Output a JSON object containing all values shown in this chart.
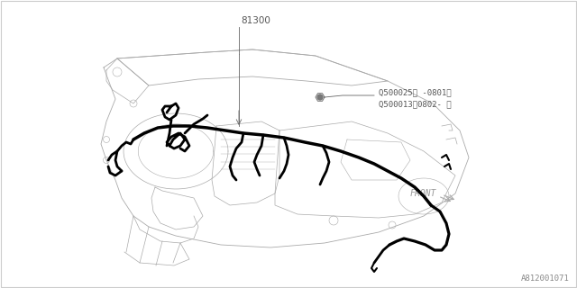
{
  "background_color": "#ffffff",
  "label_81300": "81300",
  "label_q1": "Q500025（ -0801）",
  "label_q2": "Q500013（0802- ）",
  "label_front": "FRONT",
  "label_ref": "A812001071",
  "lc": "#aaaaaa",
  "hc": "#000000",
  "font_size_small": 6.5,
  "font_size_ref": 6.5
}
